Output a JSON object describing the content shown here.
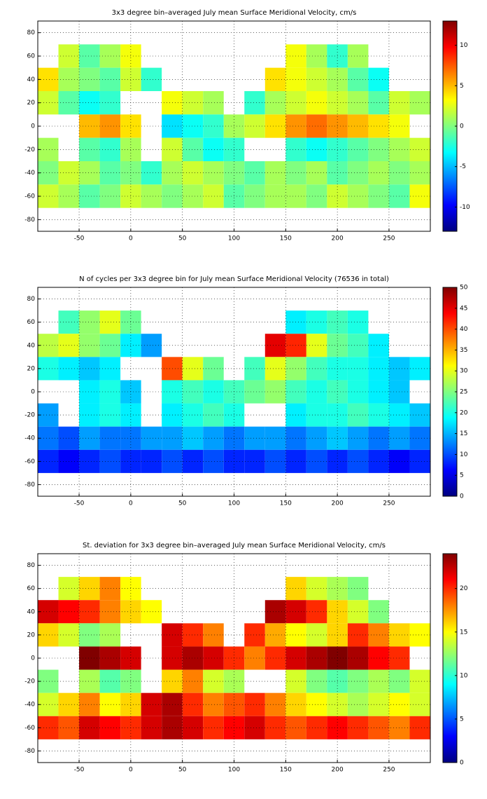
{
  "chart_data": [
    {
      "type": "heatmap",
      "title": "3x3 degree bin–averaged July mean Surface Meridional Velocity, cm/s",
      "x": [
        -80,
        -60,
        -40,
        -20,
        0,
        20,
        40,
        60,
        80,
        100,
        120,
        140,
        160,
        180,
        200,
        220,
        240,
        260,
        280
      ],
      "y": [
        80,
        60,
        40,
        20,
        0,
        -20,
        -40,
        -60,
        -80
      ],
      "values": [
        [
          null,
          null,
          null,
          null,
          null,
          null,
          null,
          null,
          null,
          null,
          null,
          null,
          null,
          null,
          null,
          null,
          null,
          null,
          null
        ],
        [
          null,
          2,
          -1,
          1,
          3,
          null,
          null,
          null,
          null,
          null,
          null,
          null,
          3,
          1,
          -2,
          1,
          null,
          null,
          null
        ],
        [
          4,
          1,
          0,
          -1,
          2,
          -2,
          null,
          null,
          null,
          null,
          null,
          4,
          3,
          2,
          1,
          -1,
          -3,
          null,
          null
        ],
        [
          2,
          -1,
          -3,
          -2,
          null,
          null,
          3,
          2,
          1,
          null,
          -2,
          1,
          2,
          3,
          2,
          1,
          -1,
          2,
          1
        ],
        [
          null,
          null,
          5,
          6,
          4,
          null,
          -4,
          -3,
          -2,
          1,
          2,
          4,
          6,
          7,
          6,
          5,
          4,
          3,
          null
        ],
        [
          1,
          null,
          -1,
          -2,
          1,
          null,
          2,
          -1,
          -3,
          -2,
          null,
          null,
          -2,
          -3,
          -2,
          -1,
          0,
          1,
          2
        ],
        [
          0,
          2,
          1,
          -1,
          0,
          -2,
          1,
          2,
          1,
          0,
          -1,
          1,
          0,
          1,
          -1,
          0,
          1,
          0,
          1
        ],
        [
          2,
          1,
          -1,
          0,
          2,
          1,
          0,
          1,
          2,
          -1,
          0,
          1,
          1,
          0,
          2,
          1,
          0,
          -1,
          3
        ],
        [
          null,
          null,
          null,
          null,
          null,
          null,
          null,
          null,
          null,
          null,
          null,
          null,
          null,
          null,
          null,
          null,
          null,
          null,
          null
        ]
      ],
      "xlim": [
        -90,
        290
      ],
      "xticks": [
        -50,
        0,
        50,
        100,
        150,
        200,
        250
      ],
      "ylim": [
        -90,
        90
      ],
      "yticks": [
        -80,
        -60,
        -40,
        -20,
        0,
        20,
        40,
        60,
        80
      ],
      "clim": [
        -13,
        13
      ],
      "cticks": [
        -10,
        -5,
        0,
        5,
        10
      ],
      "colormap": "jet",
      "grid": true
    },
    {
      "type": "heatmap",
      "title": "N of cycles per 3x3 degree bin for July mean Surface Meridional Velocity (76536 in total)",
      "x": [
        -80,
        -60,
        -40,
        -20,
        0,
        20,
        40,
        60,
        80,
        100,
        120,
        140,
        160,
        180,
        200,
        220,
        240,
        260,
        280
      ],
      "y": [
        80,
        60,
        40,
        20,
        0,
        -20,
        -40,
        -60,
        -80
      ],
      "values": [
        [
          null,
          null,
          null,
          null,
          null,
          null,
          null,
          null,
          null,
          null,
          null,
          null,
          null,
          null,
          null,
          null,
          null,
          null,
          null
        ],
        [
          null,
          22,
          26,
          30,
          24,
          null,
          null,
          null,
          null,
          null,
          null,
          null,
          18,
          20,
          22,
          20,
          null,
          null,
          null
        ],
        [
          28,
          30,
          26,
          24,
          18,
          14,
          null,
          null,
          null,
          null,
          null,
          45,
          42,
          30,
          24,
          22,
          18,
          null,
          null
        ],
        [
          20,
          18,
          16,
          18,
          null,
          null,
          40,
          30,
          24,
          null,
          22,
          30,
          26,
          22,
          20,
          20,
          18,
          16,
          18
        ],
        [
          null,
          null,
          18,
          20,
          16,
          null,
          20,
          22,
          20,
          22,
          24,
          26,
          22,
          20,
          22,
          20,
          18,
          16,
          null
        ],
        [
          14,
          null,
          18,
          20,
          18,
          null,
          18,
          20,
          22,
          20,
          null,
          null,
          18,
          20,
          20,
          22,
          20,
          18,
          16
        ],
        [
          12,
          10,
          14,
          12,
          12,
          14,
          14,
          16,
          14,
          12,
          14,
          14,
          12,
          14,
          16,
          14,
          12,
          14,
          12
        ],
        [
          8,
          6,
          8,
          10,
          8,
          8,
          10,
          8,
          10,
          8,
          8,
          10,
          8,
          10,
          8,
          10,
          8,
          6,
          8
        ],
        [
          null,
          null,
          null,
          null,
          null,
          null,
          null,
          null,
          null,
          null,
          null,
          null,
          null,
          null,
          null,
          null,
          null,
          null,
          null
        ]
      ],
      "xlim": [
        -90,
        290
      ],
      "xticks": [
        -50,
        0,
        50,
        100,
        150,
        200,
        250
      ],
      "ylim": [
        -90,
        90
      ],
      "yticks": [
        -80,
        -60,
        -40,
        -20,
        0,
        20,
        40,
        60,
        80
      ],
      "clim": [
        0,
        50
      ],
      "cticks": [
        0,
        5,
        10,
        15,
        20,
        25,
        30,
        35,
        40,
        45,
        50
      ],
      "colormap": "jet",
      "grid": true
    },
    {
      "type": "heatmap",
      "title": "St. deviation for 3x3 degree bin–averaged July mean Surface Meridional Velocity, cm/s",
      "x": [
        -80,
        -60,
        -40,
        -20,
        0,
        20,
        40,
        60,
        80,
        100,
        120,
        140,
        160,
        180,
        200,
        220,
        240,
        260,
        280
      ],
      "y": [
        80,
        60,
        40,
        20,
        0,
        -20,
        -40,
        -60,
        -80
      ],
      "values": [
        [
          null,
          null,
          null,
          null,
          null,
          null,
          null,
          null,
          null,
          null,
          null,
          null,
          null,
          null,
          null,
          null,
          null,
          null,
          null
        ],
        [
          null,
          14,
          16,
          18,
          15,
          null,
          null,
          null,
          null,
          null,
          null,
          null,
          16,
          14,
          13,
          12,
          null,
          null,
          null
        ],
        [
          22,
          21,
          20,
          18,
          16,
          15,
          null,
          null,
          null,
          null,
          null,
          23,
          22,
          20,
          16,
          14,
          12,
          null,
          null
        ],
        [
          16,
          14,
          12,
          13,
          null,
          null,
          22,
          20,
          18,
          null,
          20,
          17,
          15,
          14,
          16,
          20,
          18,
          16,
          15
        ],
        [
          null,
          null,
          24,
          23,
          22,
          null,
          22,
          23,
          22,
          20,
          18,
          20,
          22,
          23,
          24,
          23,
          21,
          20,
          null
        ],
        [
          12,
          null,
          13,
          11,
          12,
          null,
          16,
          18,
          14,
          13,
          null,
          null,
          14,
          12,
          11,
          12,
          13,
          12,
          14
        ],
        [
          14,
          16,
          18,
          15,
          16,
          22,
          23,
          20,
          18,
          19,
          20,
          18,
          16,
          15,
          14,
          13,
          14,
          15,
          14
        ],
        [
          20,
          19,
          22,
          21,
          20,
          22,
          23,
          22,
          20,
          21,
          22,
          20,
          19,
          20,
          21,
          20,
          19,
          18,
          20
        ],
        [
          null,
          null,
          null,
          null,
          null,
          null,
          null,
          null,
          null,
          null,
          null,
          null,
          null,
          null,
          null,
          null,
          null,
          null,
          null
        ]
      ],
      "xlim": [
        -90,
        290
      ],
      "xticks": [
        -50,
        0,
        50,
        100,
        150,
        200,
        250
      ],
      "ylim": [
        -90,
        90
      ],
      "yticks": [
        -80,
        -60,
        -40,
        -20,
        0,
        20,
        40,
        60,
        80
      ],
      "clim": [
        0,
        24
      ],
      "cticks": [
        0,
        5,
        10,
        15,
        20
      ],
      "colormap": "jet",
      "grid": true
    }
  ]
}
